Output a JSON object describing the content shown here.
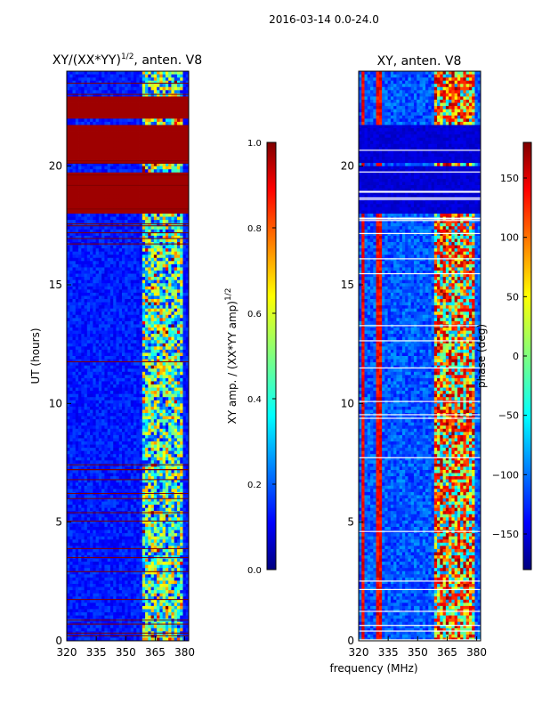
{
  "suptitle": "2016-03-14 0.0-24.0",
  "xlabel_shared": "frequency (MHz)",
  "colors": {
    "jet": [
      "#00007f",
      "#0000ff",
      "#007fff",
      "#00ffff",
      "#7fff7f",
      "#ffff00",
      "#ff7f00",
      "#ff0000",
      "#7f0000"
    ],
    "frame": "#000000",
    "white_gap": "#ffffff"
  },
  "chart_data": [
    {
      "type": "heatmap",
      "title_main": "XY/(XX*YY)",
      "title_sup": "1/2",
      "title_tail": ", anten. V8",
      "xlabel": "",
      "ylabel": "UT (hours)",
      "xlim": [
        320,
        382
      ],
      "ylim": [
        0,
        24
      ],
      "xticks": [
        320,
        335,
        350,
        365,
        380
      ],
      "yticks": [
        0,
        5,
        10,
        15,
        20
      ],
      "rfi_band_mhz": [
        358,
        379
      ],
      "saturated_hours": [
        [
          18.0,
          19.7
        ],
        [
          20.2,
          21.7
        ],
        [
          22.0,
          23.0
        ]
      ],
      "colorbar": {
        "label_main": "XY amp. / (XX*YY amp)",
        "label_sup": "1/2",
        "range": [
          0.0,
          1.0
        ],
        "ticks": [
          "0.0",
          "0.2",
          "0.4",
          "0.6",
          "0.8",
          "1.0"
        ]
      }
    },
    {
      "type": "heatmap",
      "title_main": "XY, anten. V8",
      "xlabel": "frequency (MHz)",
      "ylabel": "",
      "xlim": [
        320,
        382
      ],
      "ylim": [
        0,
        24
      ],
      "xticks": [
        320,
        335,
        350,
        365,
        380
      ],
      "yticks": [
        0,
        5,
        10,
        15,
        20
      ],
      "rfi_band_mhz": [
        358,
        379
      ],
      "flat_phase_hours": [
        [
          18.0,
          20.0
        ],
        [
          20.2,
          21.7
        ]
      ],
      "colorbar": {
        "label": "phase (deg)",
        "range": [
          -180,
          180
        ],
        "ticks": [
          "150",
          "100",
          "50",
          "0",
          "−50",
          "−100",
          "−150"
        ],
        "tick_values": [
          150,
          100,
          50,
          0,
          -50,
          -100,
          -150
        ]
      }
    }
  ]
}
